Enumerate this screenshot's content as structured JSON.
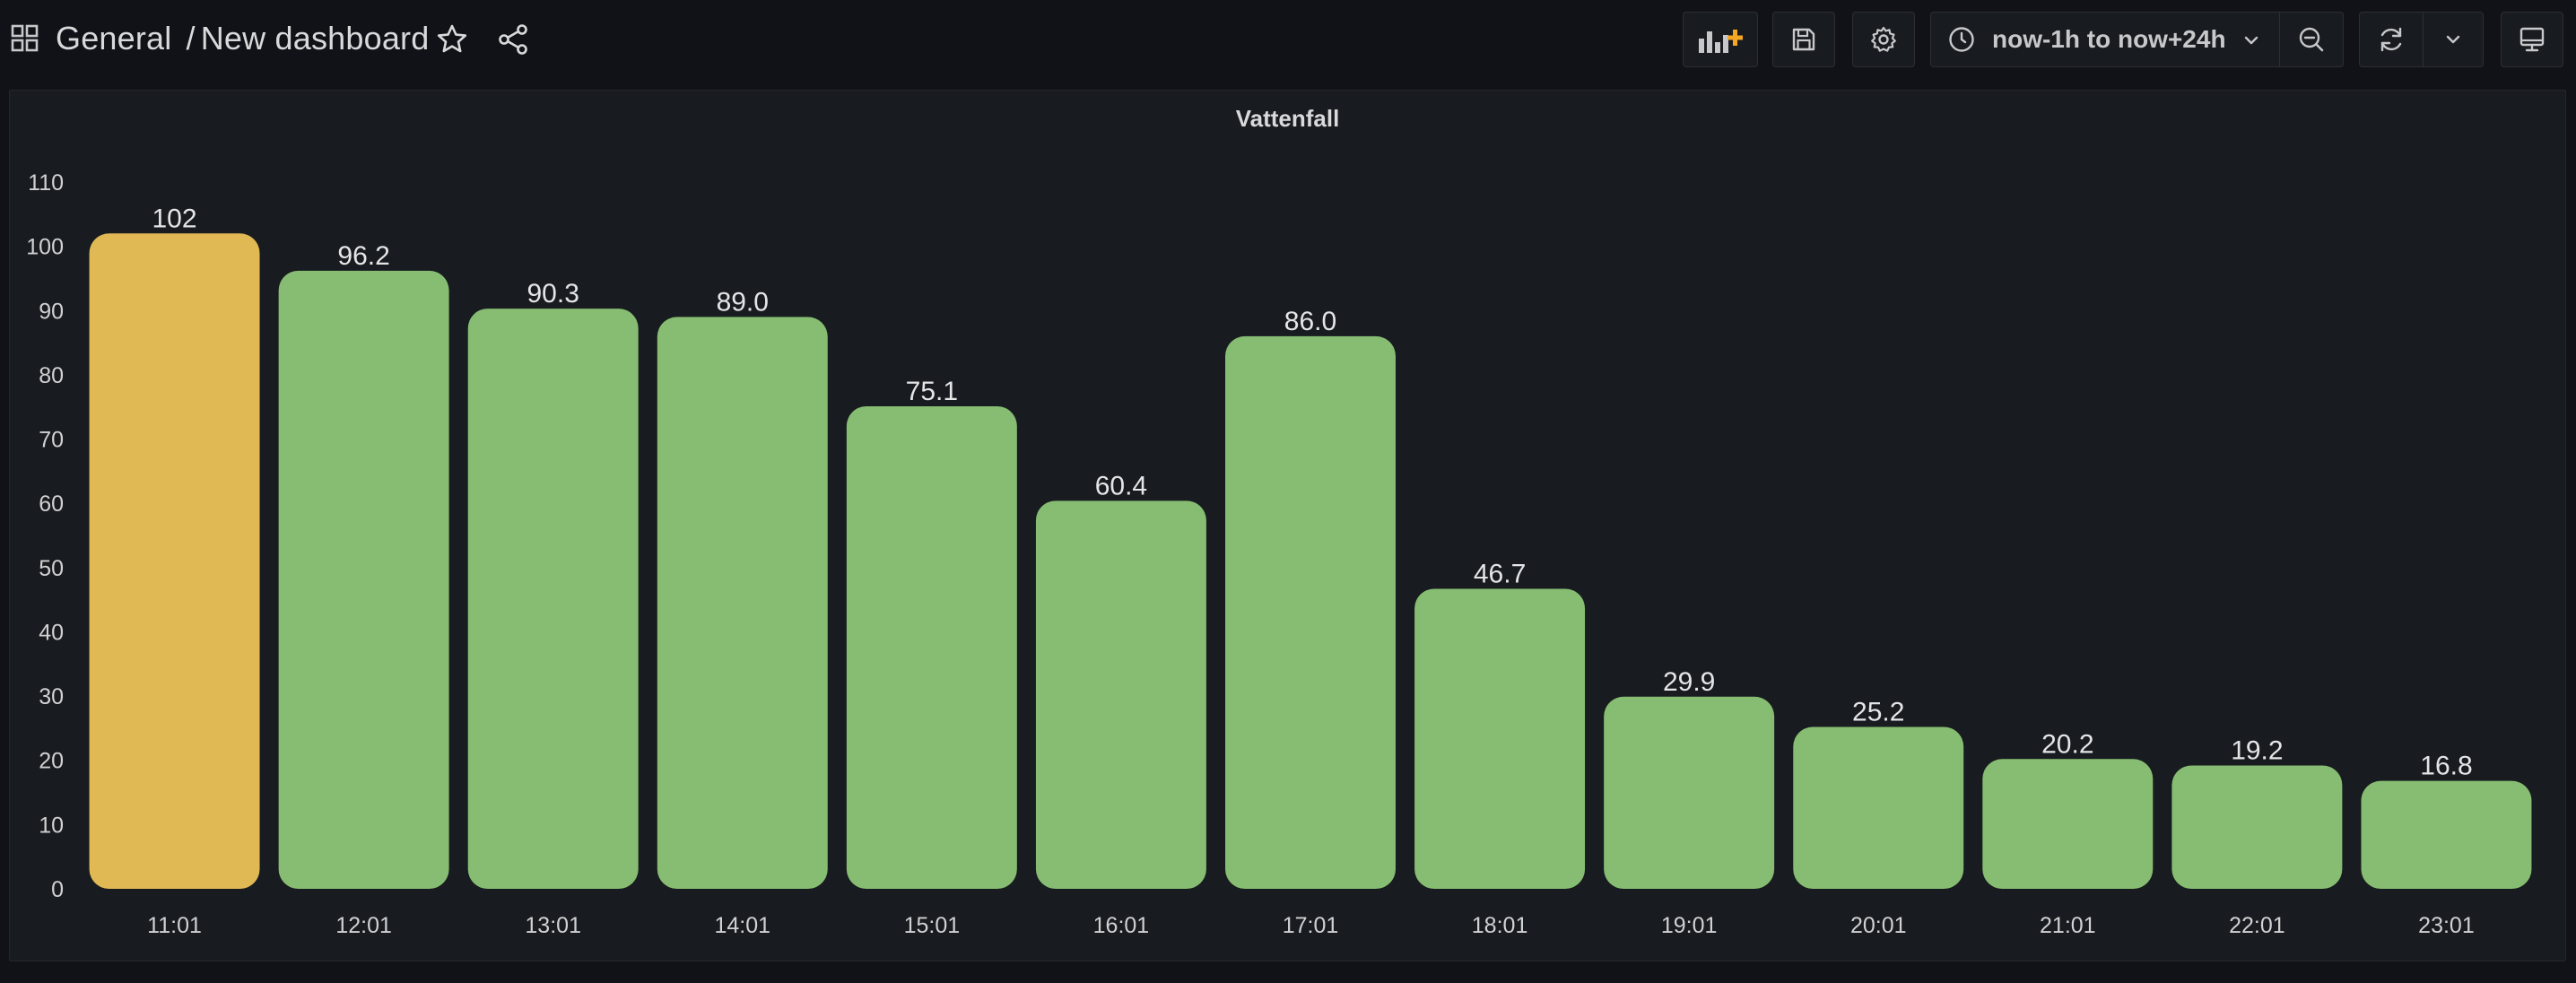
{
  "header": {
    "folder": "General",
    "separator": "/",
    "dashboard_title": "New dashboard",
    "icons": [
      "apps-icon",
      "star-icon",
      "share-icon",
      "add-panel-icon",
      "save-icon",
      "gear-icon",
      "clock-icon",
      "chevron-down-icon",
      "zoom-out-icon",
      "refresh-icon",
      "chevron-down-icon",
      "tv-icon"
    ],
    "accent_color": "#f5a623"
  },
  "time_picker": {
    "label": "now-1h to now+24h"
  },
  "panel": {
    "title": "Vattenfall"
  },
  "chart_data": {
    "type": "bar",
    "title": "Vattenfall",
    "xlabel": "",
    "ylabel": "",
    "ylim": [
      0,
      110
    ],
    "yticks": [
      0,
      10,
      20,
      30,
      40,
      50,
      60,
      70,
      80,
      90,
      100,
      110
    ],
    "categories": [
      "11:01",
      "12:01",
      "13:01",
      "14:01",
      "15:01",
      "16:01",
      "17:01",
      "18:01",
      "19:01",
      "20:01",
      "21:01",
      "22:01",
      "23:01"
    ],
    "values": [
      102,
      96.2,
      90.3,
      89.0,
      75.1,
      60.4,
      86.0,
      46.7,
      29.9,
      25.2,
      20.2,
      19.2,
      16.8
    ],
    "value_labels": [
      "102",
      "96.2",
      "90.3",
      "89.0",
      "75.1",
      "60.4",
      "86.0",
      "46.7",
      "29.9",
      "25.2",
      "20.2",
      "19.2",
      "16.8"
    ],
    "threshold": 100,
    "colors": {
      "above_threshold": "#e0b955",
      "below_threshold": "#86bd72"
    },
    "grid": false,
    "legend": "none"
  }
}
